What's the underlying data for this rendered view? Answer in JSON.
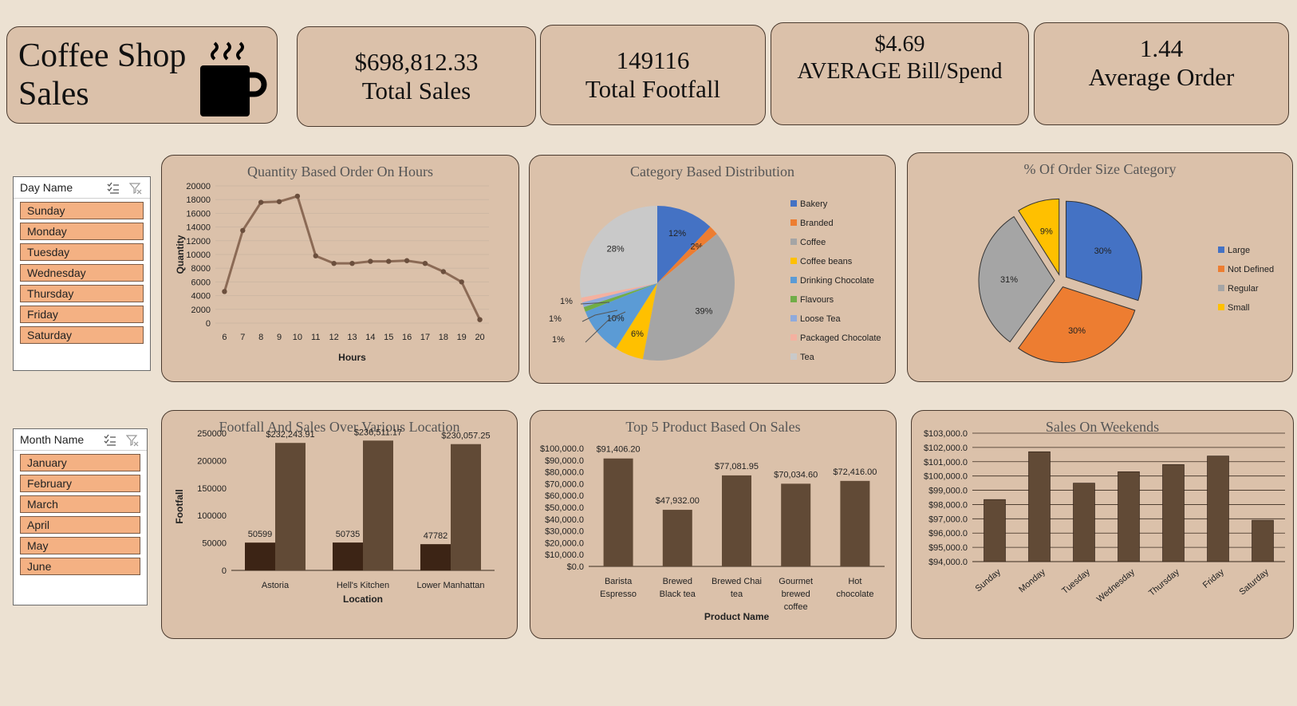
{
  "header": {
    "title_line1": "Coffee Shop",
    "title_line2": "Sales",
    "icon": "coffee-mug-icon"
  },
  "kpis": [
    {
      "value": "$698,812.33",
      "label": "Total Sales"
    },
    {
      "value": "149116",
      "label": "Total Footfall"
    },
    {
      "value": "$4.69",
      "label": "AVERAGE Bill/Spend"
    },
    {
      "value": "1.44",
      "label": "Average Order"
    }
  ],
  "slicers": {
    "day": {
      "header": "Day Name",
      "items": [
        "Sunday",
        "Monday",
        "Tuesday",
        "Wednesday",
        "Thursday",
        "Friday",
        "Saturday"
      ]
    },
    "month": {
      "header": "Month Name",
      "items": [
        "January",
        "February",
        "March",
        "April",
        "May",
        "June"
      ]
    }
  },
  "colors": {
    "bar_dark": "#3c2415",
    "bar_brown": "#614a36",
    "line": "#8b6a55",
    "slicer_item": "#f4b183",
    "card": "#dbc1aa",
    "page": "#ece1d2"
  },
  "chart_data": [
    {
      "id": "hours",
      "type": "line",
      "title": "Quantity Based Order On Hours",
      "xlabel": "Hours",
      "ylabel": "Quantity",
      "x": [
        "6",
        "7",
        "8",
        "9",
        "10",
        "11",
        "12",
        "13",
        "14",
        "15",
        "16",
        "17",
        "18",
        "19",
        "20"
      ],
      "values": [
        4600,
        13500,
        17600,
        17700,
        18500,
        9800,
        8700,
        8700,
        9000,
        9000,
        9100,
        8700,
        7500,
        6000,
        500
      ],
      "yticks": [
        "0",
        "2000",
        "4000",
        "6000",
        "8000",
        "10000",
        "12000",
        "14000",
        "16000",
        "18000",
        "20000"
      ],
      "ylim": [
        0,
        20000
      ],
      "grid": true
    },
    {
      "id": "category",
      "type": "pie",
      "title": "Category Based Distribution",
      "legend_position": "right",
      "slices": [
        {
          "name": "Bakery",
          "value": 12,
          "label": "12%",
          "color": "#4472c4"
        },
        {
          "name": "Branded",
          "value": 2,
          "label": "2%",
          "color": "#ed7d31"
        },
        {
          "name": "Coffee",
          "value": 39,
          "label": "39%",
          "color": "#a5a5a5"
        },
        {
          "name": "Coffee beans",
          "value": 6,
          "label": "6%",
          "color": "#ffc000"
        },
        {
          "name": "Drinking Chocolate",
          "value": 10,
          "label": "10%",
          "color": "#5b9bd5"
        },
        {
          "name": "Flavours",
          "value": 1,
          "label": "1%",
          "color": "#70ad47"
        },
        {
          "name": "Loose Tea",
          "value": 1,
          "label": "1%",
          "color": "#8faadc"
        },
        {
          "name": "Packaged Chocolate",
          "value": 1,
          "label": "1%",
          "color": "#f4b1a0"
        },
        {
          "name": "Tea",
          "value": 28,
          "label": "28%",
          "color": "#c9c9c9"
        }
      ]
    },
    {
      "id": "order_size",
      "type": "pie",
      "title": "% Of Order Size Category",
      "legend_position": "right",
      "exploded": true,
      "slices": [
        {
          "name": "Large",
          "value": 30,
          "label": "30%",
          "color": "#4472c4"
        },
        {
          "name": "Not Defined",
          "value": 30,
          "label": "30%",
          "color": "#ed7d31"
        },
        {
          "name": "Regular",
          "value": 31,
          "label": "31%",
          "color": "#a5a5a5"
        },
        {
          "name": "Small",
          "value": 9,
          "label": "9%",
          "color": "#ffc000"
        }
      ]
    },
    {
      "id": "location",
      "type": "bar",
      "title": "Footfall And Sales Over Various Location",
      "xlabel": "Location",
      "ylabel": "Footfall",
      "categories": [
        "Astoria",
        "Hell's Kitchen",
        "Lower Manhattan"
      ],
      "series": [
        {
          "values": [
            50599,
            50735,
            47782
          ],
          "labels": [
            "50599",
            "50735",
            "47782"
          ],
          "color": "#3c2415"
        },
        {
          "values": [
            232243.91,
            236511.17,
            230057.25
          ],
          "labels": [
            "$232,243.91",
            "$236,511.17",
            "$230,057.25"
          ],
          "color": "#614a36"
        }
      ],
      "yticks": [
        "0",
        "50000",
        "100000",
        "150000",
        "200000",
        "250000"
      ],
      "ylim": [
        0,
        250000
      ],
      "grid": false
    },
    {
      "id": "products",
      "type": "bar",
      "title": "Top 5 Product Based On Sales",
      "xlabel": "Product Name",
      "categories": [
        [
          "Barista",
          "Espresso"
        ],
        [
          "Brewed",
          "Black tea"
        ],
        [
          "Brewed Chai",
          "tea"
        ],
        [
          "Gourmet",
          "brewed",
          "coffee"
        ],
        [
          "Hot",
          "chocolate"
        ]
      ],
      "values": [
        91406.2,
        47932.0,
        77081.95,
        70034.6,
        72416.0
      ],
      "labels": [
        "$91,406.20",
        "$47,932.00",
        "$77,081.95",
        "$70,034.60",
        "$72,416.00"
      ],
      "yticks": [
        "$0.0",
        "$10,000.0",
        "$20,000.0",
        "$30,000.0",
        "$40,000.0",
        "$50,000.0",
        "$60,000.0",
        "$70,000.0",
        "$80,000.0",
        "$90,000.0",
        "$100,000.0"
      ],
      "ylim": [
        0,
        100000
      ],
      "grid": false
    },
    {
      "id": "weekdays",
      "type": "bar",
      "title": "Sales On Weekends",
      "categories": [
        "Sunday",
        "Monday",
        "Tuesday",
        "Wednesday",
        "Thursday",
        "Friday",
        "Saturday"
      ],
      "values": [
        98350,
        101700,
        99500,
        100300,
        100800,
        101400,
        96900
      ],
      "yticks": [
        "$94,000.0",
        "$95,000.0",
        "$96,000.0",
        "$97,000.0",
        "$98,000.0",
        "$99,000.0",
        "$100,000.0",
        "$101,000.0",
        "$102,000.0",
        "$103,000.0"
      ],
      "ylim": [
        94000,
        103000
      ],
      "grid": true
    }
  ]
}
